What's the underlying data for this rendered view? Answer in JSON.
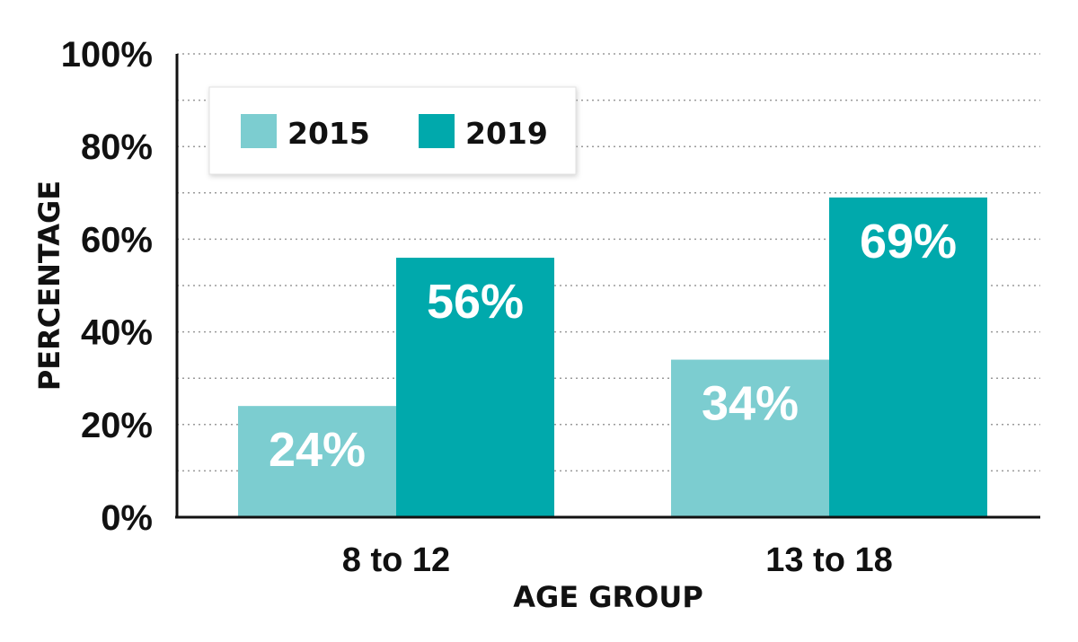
{
  "chart_data": {
    "type": "bar",
    "categories": [
      "8 to 12",
      "13 to 18"
    ],
    "series": [
      {
        "name": "2015",
        "values": [
          24,
          34
        ],
        "labels": [
          "24%",
          "34%"
        ],
        "color": "#7ccdd0"
      },
      {
        "name": "2019",
        "values": [
          56,
          69
        ],
        "labels": [
          "56%",
          "69%"
        ],
        "color": "#00a9ac"
      }
    ],
    "xlabel": "AGE GROUP",
    "ylabel": "PERCENTAGE",
    "ylim": [
      0,
      100
    ],
    "yticks": [
      0,
      20,
      40,
      60,
      80,
      100
    ],
    "ytick_labels": [
      "0%",
      "20%",
      "40%",
      "60%",
      "80%",
      "100%"
    ],
    "grid": true,
    "legend_position": "top-left"
  }
}
